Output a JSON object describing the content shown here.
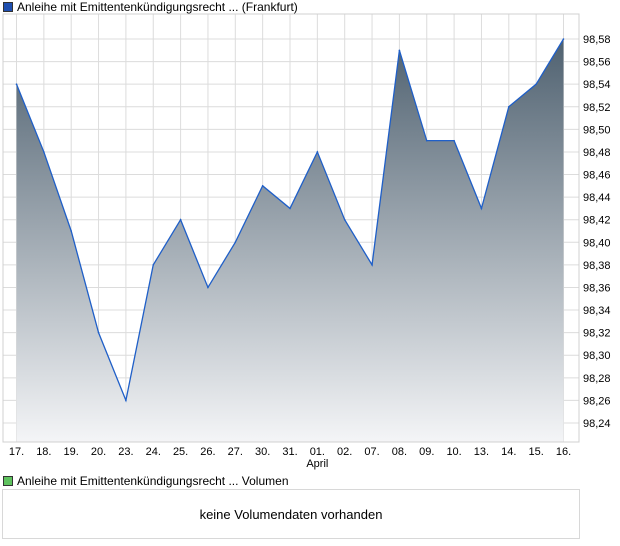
{
  "chart_data": {
    "type": "area",
    "title": "Anleihe mit Emittentenkündigungsrecht ... (Frankfurt)",
    "categories": [
      "17.",
      "18.",
      "19.",
      "20.",
      "23.",
      "24.",
      "25.",
      "26.",
      "27.",
      "30.",
      "31.",
      "01.",
      "02.",
      "07.",
      "08.",
      "09.",
      "10.",
      "13.",
      "14.",
      "15.",
      "16."
    ],
    "month_label": "April",
    "month_label_index": 11,
    "values": [
      98.54,
      98.48,
      98.41,
      98.32,
      98.26,
      98.38,
      98.42,
      98.36,
      98.4,
      98.45,
      98.43,
      98.48,
      98.42,
      98.38,
      98.57,
      98.49,
      98.49,
      98.43,
      98.52,
      98.54,
      98.58
    ],
    "yticks": [
      "98,58",
      "98,56",
      "98,54",
      "98,52",
      "98,50",
      "98,48",
      "98,46",
      "98,44",
      "98,42",
      "98,40",
      "98,38",
      "98,36",
      "98,34",
      "98,32",
      "98,30",
      "98,28",
      "98,26",
      "98,24"
    ],
    "ylim": [
      98.24,
      98.58
    ],
    "grid": true,
    "line_color": "#1f5fc8",
    "fill_top_color": "#4f6170",
    "fill_bottom_color": "#f4f5f7"
  },
  "volume": {
    "legend": "Anleihe mit Emittentenkündigungsrecht ... Volumen",
    "message": "keine Volumendaten vorhanden",
    "color": "#5ec25e"
  }
}
